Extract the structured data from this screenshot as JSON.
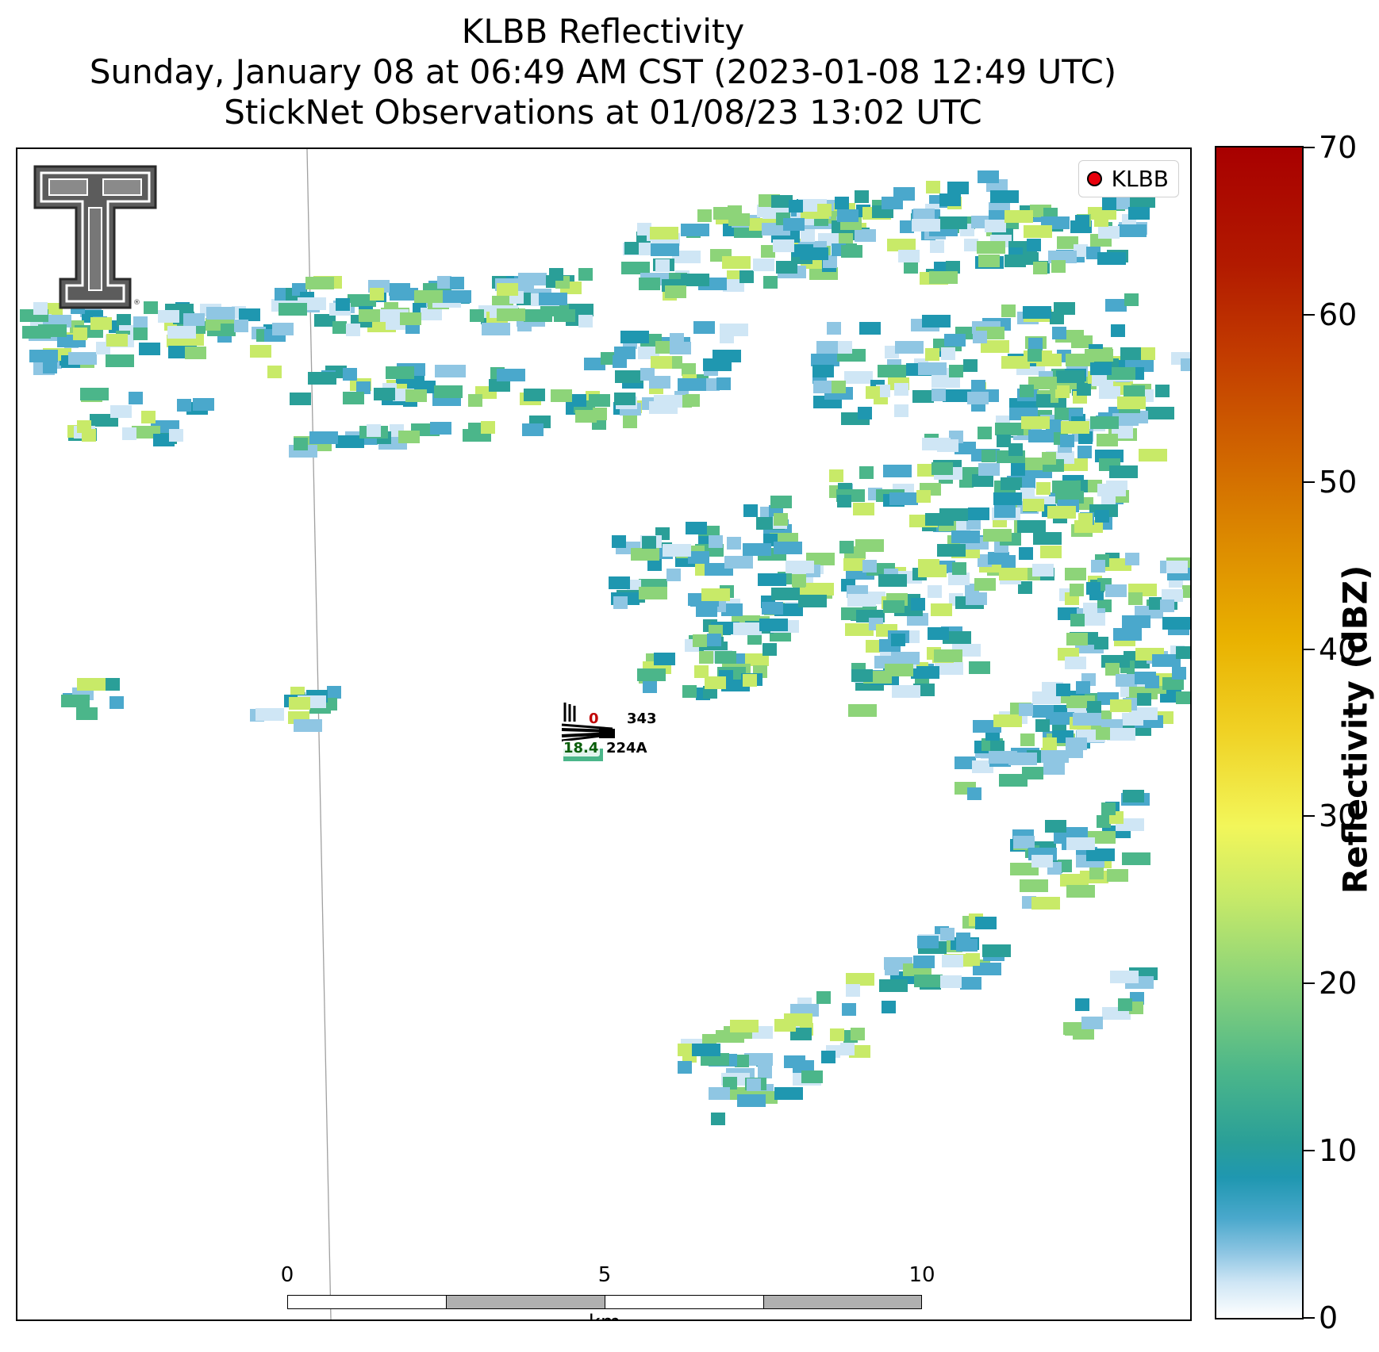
{
  "titles": {
    "line1": "KLBB Reflectivity",
    "line2": "Sunday, January 08 at 06:49 AM CST (2023-01-08 12:49 UTC)",
    "line3": "StickNet Observations at 01/08/23 13:02 UTC"
  },
  "legend": {
    "label": "KLBB",
    "marker_color": "#e8000b"
  },
  "station": {
    "temp": "0",
    "pressure": "343",
    "dewpoint": "18.4",
    "id": "224A"
  },
  "scale_bar": {
    "ticks": [
      "0",
      "5",
      "10"
    ],
    "unit": "km"
  },
  "colorbar": {
    "label": "Reflectivity (dBZ)",
    "ticks": [
      "0",
      "10",
      "20",
      "30",
      "40",
      "50",
      "60",
      "70"
    ],
    "min": 0,
    "max": 70,
    "colors": [
      "#ffffff",
      "#cfe6f5",
      "#8fc6e3",
      "#4aa8cc",
      "#1f97b0",
      "#2a9f98",
      "#4bb68a",
      "#8dd479",
      "#c8ea68",
      "#f2f65a",
      "#f0d225",
      "#e9b100",
      "#dd8c00",
      "#d06400",
      "#c33d00",
      "#b21a00",
      "#a80000"
    ]
  },
  "logo": {
    "name": "Texas Tech double-T logo"
  }
}
